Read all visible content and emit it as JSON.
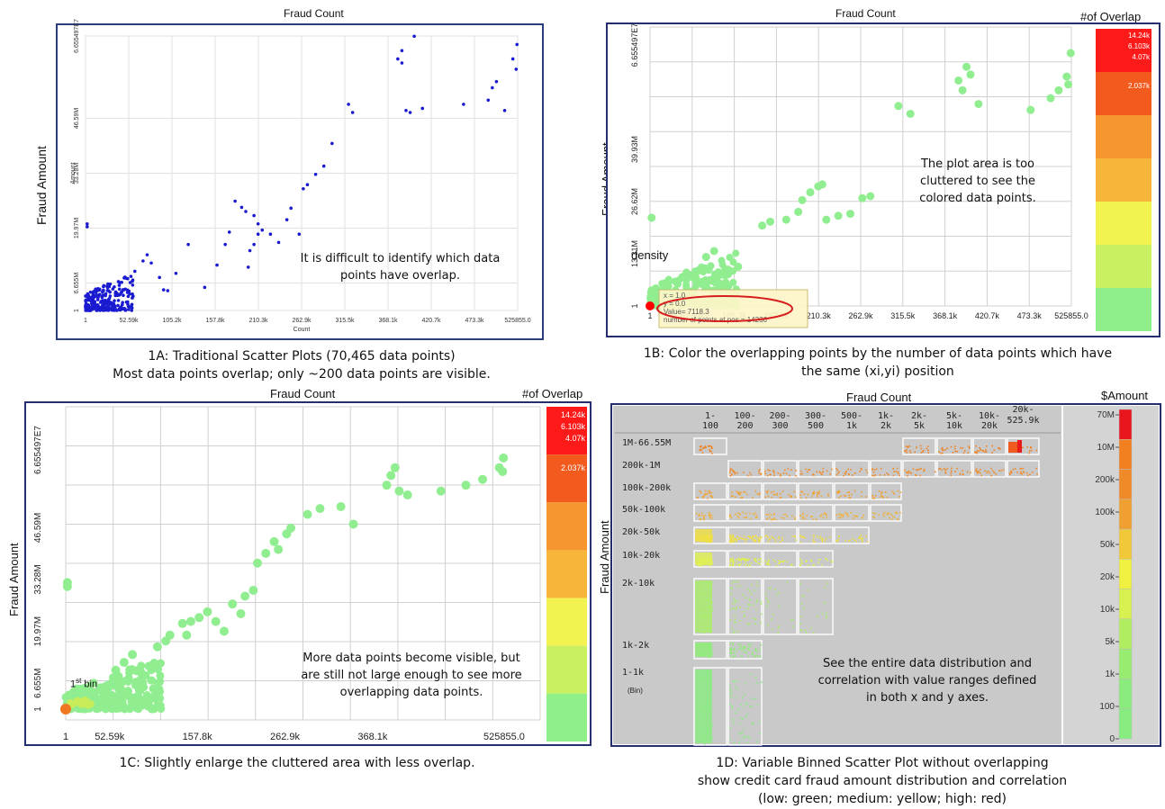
{
  "figure": {
    "panel_a": {
      "title": "Fraud Count",
      "ylabel": "Fraud Amount",
      "inner_ylabel": "Amount",
      "inner_xlabel": "Count",
      "annotation": "It is difficult to identify which data points have overlap.",
      "caption_line1": "1A: Traditional Scatter Plots (70,465 data points)",
      "caption_line2": "Most data points overlap; only ~200 data points are visible."
    },
    "panel_b": {
      "title": "Fraud Count",
      "legend_title": "#of Overlap",
      "ylabel": "Fraud Amount",
      "annotation": "The plot area is too cluttered to see the colored data points.",
      "density_label": "density",
      "tooltip_lines": [
        "x = 1.0",
        "y = 0.0",
        "Value= 7118.3",
        "number of points at pos = 14236"
      ],
      "caption_line1": "1B: Color the overlapping points by the number of data points which have",
      "caption_line2": "the same (xi,yi) position"
    },
    "panel_c": {
      "title": "Fraud Count",
      "legend_title": "#of Overlap",
      "ylabel": "Fraud Amount",
      "annotation": "More data points become visible, but are still not large enough to see more overlapping data points.",
      "first_bin_label": "1st bin",
      "caption": "1C: Slightly enlarge the cluttered area with less overlap."
    },
    "panel_d": {
      "title": "Fraud Count",
      "legend_title": "$Amount",
      "ylabel": "Fraud Amount",
      "bin_note": "(Bin)",
      "annotation": "See the entire data distribution and correlation with value ranges defined in both x and y axes.",
      "caption_line1": "1D: Variable Binned Scatter Plot without overlapping",
      "caption_line2": "show credit card fraud amount distribution and correlation",
      "caption_line3": "(low: green;  medium: yellow;  high: red)"
    }
  },
  "chart_data": [
    {
      "type": "scatter",
      "title": "Fraud Count",
      "xlabel": "Count",
      "ylabel": "Amount",
      "x_ticks": [
        "1",
        "52.59k",
        "105.2k",
        "157.8k",
        "210.3k",
        "262.9k",
        "315.5k",
        "368.1k",
        "420.7k",
        "473.3k",
        "525855.0"
      ],
      "y_ticks": [
        "1",
        "6.655M",
        "19.97M",
        "33.28M",
        "46.59M",
        "6.655497E7"
      ],
      "xlim": [
        0,
        525855
      ],
      "ylim": [
        0,
        66554970
      ],
      "color": "#1a1ad0",
      "points": [
        [
          2000,
          21000000
        ],
        [
          2000,
          20300000
        ],
        [
          40000,
          7000000
        ],
        [
          60000,
          9500000
        ],
        [
          70000,
          12000000
        ],
        [
          75000,
          13500000
        ],
        [
          80000,
          11500000
        ],
        [
          90000,
          8000000
        ],
        [
          95000,
          5000000
        ],
        [
          100000,
          4800000
        ],
        [
          110000,
          9000000
        ],
        [
          125000,
          16000000
        ],
        [
          145000,
          5600000
        ],
        [
          160000,
          11000000
        ],
        [
          170000,
          16000000
        ],
        [
          175000,
          19000000
        ],
        [
          182000,
          26500000
        ],
        [
          190000,
          25000000
        ],
        [
          195000,
          24000000
        ],
        [
          198000,
          10500000
        ],
        [
          200000,
          14500000
        ],
        [
          205000,
          16000000
        ],
        [
          205000,
          23000000
        ],
        [
          210000,
          18500000
        ],
        [
          210000,
          21000000
        ],
        [
          215000,
          19500000
        ],
        [
          225000,
          18500000
        ],
        [
          235000,
          16500000
        ],
        [
          245000,
          22000000
        ],
        [
          250000,
          24800000
        ],
        [
          260000,
          18500000
        ],
        [
          265000,
          29500000
        ],
        [
          270000,
          30500000
        ],
        [
          280000,
          33000000
        ],
        [
          290000,
          35000000
        ],
        [
          300000,
          40500000
        ],
        [
          320000,
          50000000
        ],
        [
          325000,
          48000000
        ],
        [
          380000,
          61000000
        ],
        [
          385000,
          63000000
        ],
        [
          385000,
          60000000
        ],
        [
          390000,
          48500000
        ],
        [
          395000,
          48000000
        ],
        [
          400000,
          66500000
        ],
        [
          410000,
          49000000
        ],
        [
          460000,
          50000000
        ],
        [
          490000,
          51000000
        ],
        [
          495000,
          54000000
        ],
        [
          500000,
          55500000
        ],
        [
          510000,
          48500000
        ],
        [
          520000,
          61000000
        ],
        [
          525000,
          64500000
        ],
        [
          524000,
          58500000
        ]
      ],
      "dense_cluster": {
        "x_range": [
          0,
          60000
        ],
        "y_range": [
          0,
          9000000
        ]
      }
    },
    {
      "type": "scatter",
      "title": "Fraud Count",
      "x_ticks": [
        "1",
        "52.59k",
        "105.2k",
        "157.8k",
        "210.3k",
        "262.9k",
        "315.5k",
        "368.1k",
        "420.7k",
        "473.3k",
        "525855.0"
      ],
      "y_ticks": [
        "1",
        "13.31M",
        "26.62M",
        "39.93M",
        "6.655497E7"
      ],
      "xlim": [
        0,
        525855
      ],
      "ylim": [
        0,
        66554970
      ],
      "legend": {
        "title": "#of Overlap",
        "labels": [
          "14.24k",
          "6.103k",
          "4.07k",
          "2.037k"
        ]
      },
      "colors": [
        "#ff1a1a",
        "#f25a1e",
        "#f7952e",
        "#f7b63a",
        "#f2f250",
        "#c8f060",
        "#8ff08a"
      ],
      "point_color": "#90ee90",
      "highlight_point": {
        "x": 1,
        "y": 1,
        "color": "#ff0000"
      },
      "points": [
        [
          2000,
          22500000
        ],
        [
          60000,
          9000000
        ],
        [
          70000,
          12500000
        ],
        [
          80000,
          14000000
        ],
        [
          90000,
          8000000
        ],
        [
          110000,
          10000000
        ],
        [
          140000,
          20500000
        ],
        [
          150000,
          21500000
        ],
        [
          170000,
          22000000
        ],
        [
          185000,
          24000000
        ],
        [
          190000,
          27000000
        ],
        [
          200000,
          29000000
        ],
        [
          210000,
          30500000
        ],
        [
          215000,
          31000000
        ],
        [
          220000,
          22000000
        ],
        [
          235000,
          23000000
        ],
        [
          250000,
          23500000
        ],
        [
          265000,
          27500000
        ],
        [
          275000,
          28000000
        ],
        [
          310000,
          51000000
        ],
        [
          325000,
          49000000
        ],
        [
          385000,
          57500000
        ],
        [
          390000,
          55000000
        ],
        [
          395000,
          61000000
        ],
        [
          400000,
          59000000
        ],
        [
          410000,
          51500000
        ],
        [
          475000,
          50000000
        ],
        [
          500000,
          53000000
        ],
        [
          510000,
          55000000
        ],
        [
          520000,
          58500000
        ],
        [
          522000,
          56500000
        ],
        [
          525000,
          64500000
        ]
      ]
    },
    {
      "type": "scatter",
      "title": "Fraud Count",
      "x_ticks": [
        "1",
        "52.59k",
        "157.8k",
        "262.9k",
        "368.1k",
        "525855.0"
      ],
      "y_ticks": [
        "1",
        "6.655M",
        "19.97M",
        "33.28M",
        "46.59M",
        "6.655497E7"
      ],
      "xlim": [
        0,
        525855
      ],
      "ylim": [
        0,
        66554970
      ],
      "legend": {
        "title": "#of Overlap",
        "labels": [
          "14.24k",
          "6.103k",
          "4.07k",
          "2.037k"
        ]
      },
      "colors": [
        "#ff1a1a",
        "#f25a1e",
        "#f7952e",
        "#f7b63a",
        "#f2f250",
        "#c8f060",
        "#8ff08a"
      ],
      "point_color": "#90ee90",
      "highlight_point": {
        "x": 1,
        "y": 1,
        "color": "#f07820"
      },
      "points": [
        [
          2000,
          32500000
        ],
        [
          2000,
          31500000
        ],
        [
          60000,
          10000000
        ],
        [
          70000,
          12000000
        ],
        [
          80000,
          14000000
        ],
        [
          90000,
          9500000
        ],
        [
          100000,
          11000000
        ],
        [
          110000,
          16000000
        ],
        [
          120000,
          17500000
        ],
        [
          125000,
          19000000
        ],
        [
          140000,
          22000000
        ],
        [
          145000,
          19000000
        ],
        [
          150000,
          22500000
        ],
        [
          160000,
          23500000
        ],
        [
          170000,
          25000000
        ],
        [
          180000,
          22500000
        ],
        [
          190000,
          20000000
        ],
        [
          200000,
          27000000
        ],
        [
          210000,
          24500000
        ],
        [
          215000,
          29000000
        ],
        [
          225000,
          30500000
        ],
        [
          230000,
          37500000
        ],
        [
          240000,
          40000000
        ],
        [
          250000,
          43000000
        ],
        [
          255000,
          41000000
        ],
        [
          265000,
          45000000
        ],
        [
          270000,
          46500000
        ],
        [
          290000,
          50000000
        ],
        [
          305000,
          51500000
        ],
        [
          330000,
          52000000
        ],
        [
          345000,
          47500000
        ],
        [
          385000,
          57500000
        ],
        [
          390000,
          60000000
        ],
        [
          395000,
          62000000
        ],
        [
          400000,
          56000000
        ],
        [
          410000,
          55000000
        ],
        [
          450000,
          56000000
        ],
        [
          480000,
          57500000
        ],
        [
          500000,
          59000000
        ],
        [
          520000,
          62000000
        ],
        [
          525000,
          64500000
        ],
        [
          524000,
          61000000
        ]
      ]
    },
    {
      "type": "heatmap",
      "title": "Fraud Count",
      "ylabel": "Fraud Amount",
      "x_bins": [
        "1-100",
        "100-200",
        "200-300",
        "300-500",
        "500-1k",
        "1k-2k",
        "2k-5k",
        "5k-10k",
        "10k-20k",
        "20k-525.9k"
      ],
      "y_bins": [
        "1M-66.55M",
        "200k-1M",
        "100k-200k",
        "50k-100k",
        "20k-50k",
        "10k-20k",
        "2k-10k",
        "1k-2k",
        "1-1k"
      ],
      "legend": {
        "title": "$Amount",
        "labels": [
          "70M",
          "10M",
          "200k",
          "100k",
          "50k",
          "20k",
          "10k",
          "5k",
          "1k",
          "100",
          "0"
        ],
        "colors": [
          "#e8141e",
          "#f08020",
          "#f08a28",
          "#f0a030",
          "#f0c838",
          "#f0f040",
          "#d8f050",
          "#b0ee60",
          "#98ec70",
          "#8aec7c",
          "#88ec80"
        ]
      },
      "occupied_cells": [
        [
          "1M-66.55M",
          [
            "1-100",
            "2k-5k",
            "5k-10k",
            "10k-20k",
            "20k-525.9k"
          ]
        ],
        [
          "200k-1M",
          [
            "100-200",
            "200-300",
            "300-500",
            "500-1k",
            "1k-2k",
            "2k-5k",
            "5k-10k",
            "10k-20k",
            "20k-525.9k"
          ]
        ],
        [
          "100k-200k",
          [
            "1-100",
            "100-200",
            "200-300",
            "300-500",
            "500-1k",
            "1k-2k"
          ]
        ],
        [
          "50k-100k",
          [
            "1-100",
            "100-200",
            "200-300",
            "300-500",
            "500-1k",
            "1k-2k"
          ]
        ],
        [
          "20k-50k",
          [
            "1-100",
            "100-200",
            "200-300",
            "300-500",
            "500-1k"
          ]
        ],
        [
          "10k-20k",
          [
            "1-100",
            "100-200",
            "200-300",
            "300-500"
          ]
        ],
        [
          "2k-10k",
          [
            "1-100",
            "100-200",
            "200-300",
            "300-500"
          ]
        ],
        [
          "1k-2k",
          [
            "1-100",
            "100-200"
          ]
        ],
        [
          "1-1k",
          [
            "1-100",
            "100-200"
          ]
        ]
      ],
      "cell_colors": {
        "1M-66.55M": "#f08020",
        "200k-1M": "#f08a28",
        "100k-200k": "#f0a030",
        "50k-100k": "#f0b038",
        "20k-50k": "#f0e040",
        "10k-20k": "#e0f050",
        "2k-10k": "#a8ee68",
        "1k-2k": "#90ec78",
        "1-1k": "#88ec80"
      }
    }
  ]
}
